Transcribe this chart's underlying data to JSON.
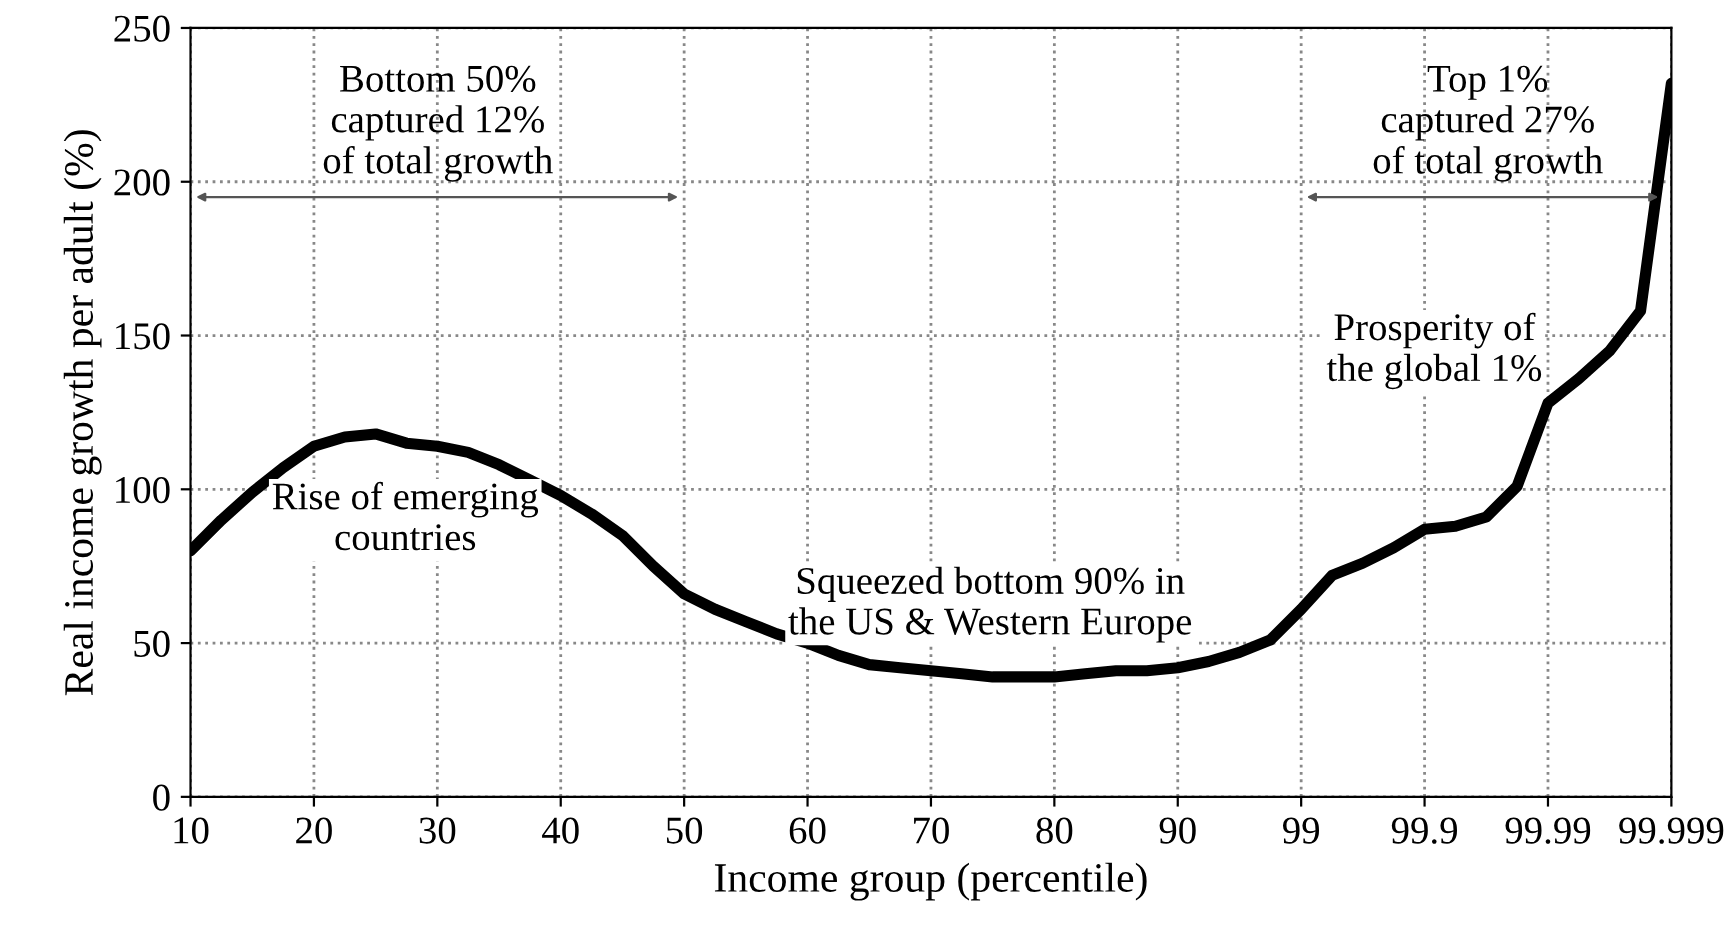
{
  "chart_data": {
    "type": "line",
    "xlabel": "Income group (percentile)",
    "ylabel": "Real income growth per adult (%)",
    "categories": [
      "10",
      null,
      null,
      null,
      "20",
      null,
      null,
      null,
      "30",
      null,
      null,
      null,
      "40",
      null,
      null,
      null,
      "50",
      null,
      null,
      null,
      "60",
      null,
      null,
      null,
      "70",
      null,
      null,
      null,
      "80",
      null,
      null,
      null,
      "90",
      null,
      null,
      null,
      "99",
      null,
      null,
      null,
      "99.9",
      null,
      null,
      null,
      "99.99",
      null,
      null,
      null,
      "99.999"
    ],
    "series": [
      {
        "color": "#000000",
        "values": [
          80,
          90,
          99,
          107,
          114,
          117,
          118,
          115,
          114,
          112,
          108,
          103,
          98,
          92,
          85,
          75,
          66,
          61,
          57,
          53,
          50,
          46,
          43,
          42,
          41,
          40,
          39,
          39,
          39,
          40,
          41,
          41,
          42,
          44,
          47,
          51,
          61,
          72,
          76,
          81,
          87,
          88,
          91,
          101,
          128,
          136,
          145,
          158,
          232
        ]
      }
    ],
    "ylim": [
      0,
      250
    ],
    "yticks": [
      0,
      50,
      100,
      150,
      200,
      250
    ],
    "grid": true,
    "marker": "none",
    "line_style": "solid",
    "annotations": [
      "Bottom 50%\ncaptured 12%\nof total growth",
      "Top 1%\ncaptured 27%\nof total growth",
      "Rise of emerging\ncountries",
      "Squeezed bottom 90% in\nthe US & Western Europe",
      "Prosperity of\nthe global 1%"
    ]
  }
}
